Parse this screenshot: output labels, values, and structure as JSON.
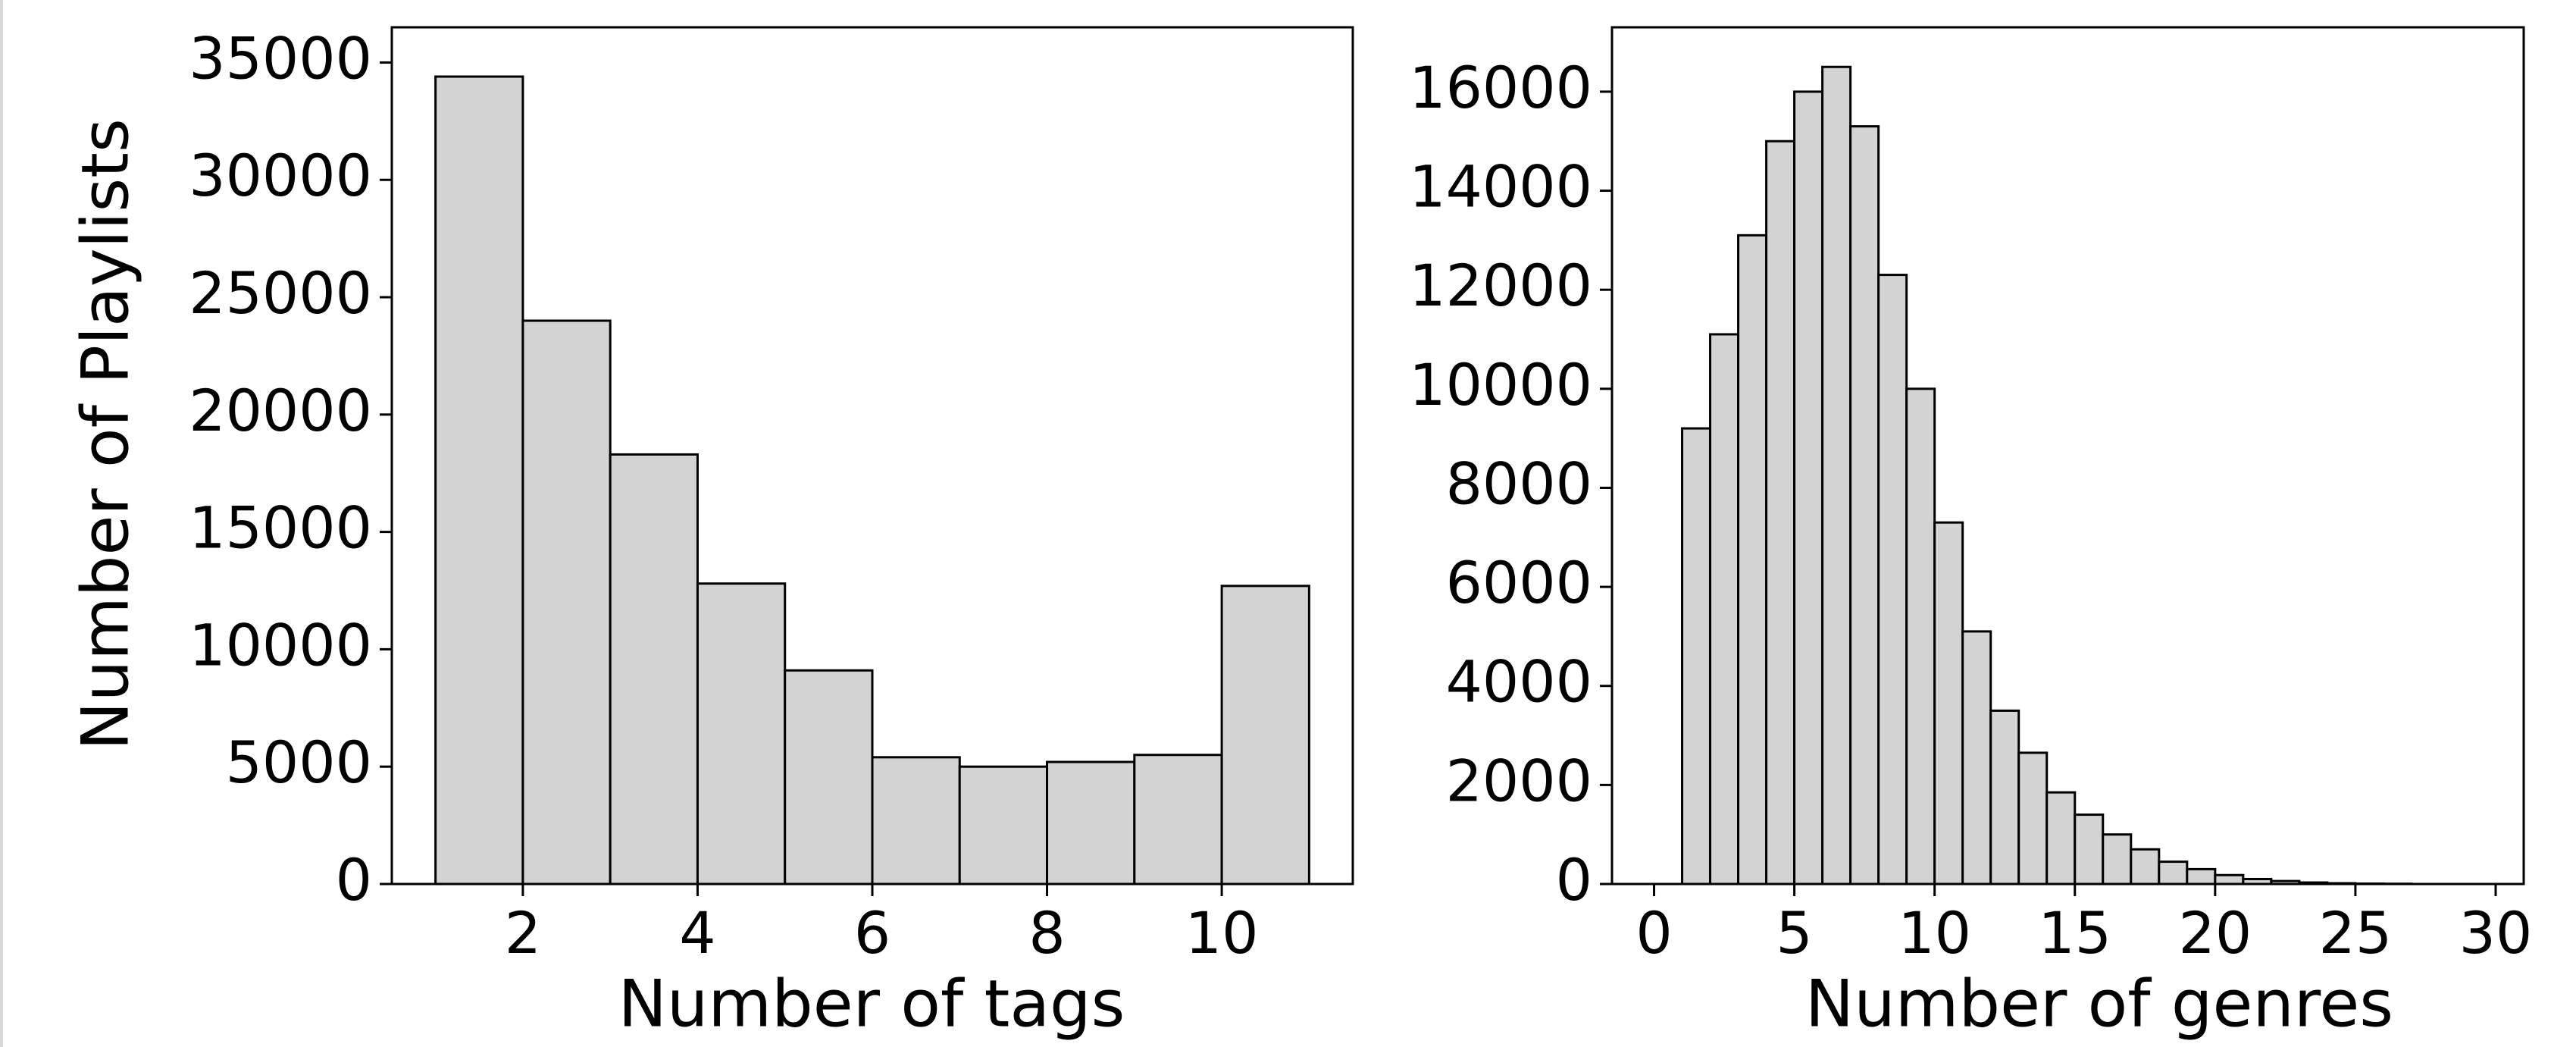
{
  "figure": {
    "bar_fill": "#d3d3d3",
    "bar_edge": "#000000",
    "axes_color": "#000000",
    "background": "#ffffff"
  },
  "chart_data": [
    {
      "type": "bar",
      "histogram": true,
      "title": "",
      "xlabel": "Number of tags",
      "ylabel": "Number of Playlists",
      "xlim": [
        0.5,
        11.5
      ],
      "ylim": [
        0,
        36500
      ],
      "xticks": [
        2,
        4,
        6,
        8,
        10
      ],
      "yticks": [
        0,
        5000,
        10000,
        15000,
        20000,
        25000,
        30000,
        35000
      ],
      "grid": false,
      "bins": [
        {
          "x0": 1,
          "x1": 2,
          "value": 34400
        },
        {
          "x0": 2,
          "x1": 3,
          "value": 24000
        },
        {
          "x0": 3,
          "x1": 4,
          "value": 18300
        },
        {
          "x0": 4,
          "x1": 5,
          "value": 12800
        },
        {
          "x0": 5,
          "x1": 6,
          "value": 9100
        },
        {
          "x0": 6,
          "x1": 7,
          "value": 5400
        },
        {
          "x0": 7,
          "x1": 8,
          "value": 5000
        },
        {
          "x0": 8,
          "x1": 9,
          "value": 5200
        },
        {
          "x0": 9,
          "x1": 10,
          "value": 5500
        },
        {
          "x0": 10,
          "x1": 11,
          "value": 12700
        }
      ]
    },
    {
      "type": "bar",
      "histogram": true,
      "title": "",
      "xlabel": "Number of genres",
      "ylabel": "",
      "xlim": [
        -1.5,
        31
      ],
      "ylim": [
        0,
        17300
      ],
      "xticks": [
        0,
        5,
        10,
        15,
        20,
        25,
        30
      ],
      "yticks": [
        0,
        2000,
        4000,
        6000,
        8000,
        10000,
        12000,
        14000,
        16000
      ],
      "grid": false,
      "bins": [
        {
          "x0": 1,
          "x1": 2,
          "value": 9200
        },
        {
          "x0": 2,
          "x1": 3,
          "value": 11100
        },
        {
          "x0": 3,
          "x1": 4,
          "value": 13100
        },
        {
          "x0": 4,
          "x1": 5,
          "value": 15000
        },
        {
          "x0": 5,
          "x1": 6,
          "value": 16000
        },
        {
          "x0": 6,
          "x1": 7,
          "value": 16500
        },
        {
          "x0": 7,
          "x1": 8,
          "value": 15300
        },
        {
          "x0": 8,
          "x1": 9,
          "value": 12300
        },
        {
          "x0": 9,
          "x1": 10,
          "value": 10000
        },
        {
          "x0": 10,
          "x1": 11,
          "value": 7300
        },
        {
          "x0": 11,
          "x1": 12,
          "value": 5100
        },
        {
          "x0": 12,
          "x1": 13,
          "value": 3500
        },
        {
          "x0": 13,
          "x1": 14,
          "value": 2650
        },
        {
          "x0": 14,
          "x1": 15,
          "value": 1850
        },
        {
          "x0": 15,
          "x1": 16,
          "value": 1400
        },
        {
          "x0": 16,
          "x1": 17,
          "value": 1000
        },
        {
          "x0": 17,
          "x1": 18,
          "value": 700
        },
        {
          "x0": 18,
          "x1": 19,
          "value": 450
        },
        {
          "x0": 19,
          "x1": 20,
          "value": 300
        },
        {
          "x0": 20,
          "x1": 21,
          "value": 180
        },
        {
          "x0": 21,
          "x1": 22,
          "value": 100
        },
        {
          "x0": 22,
          "x1": 23,
          "value": 60
        },
        {
          "x0": 23,
          "x1": 24,
          "value": 30
        },
        {
          "x0": 24,
          "x1": 25,
          "value": 15
        },
        {
          "x0": 25,
          "x1": 26,
          "value": 8
        },
        {
          "x0": 26,
          "x1": 27,
          "value": 5
        }
      ]
    }
  ]
}
